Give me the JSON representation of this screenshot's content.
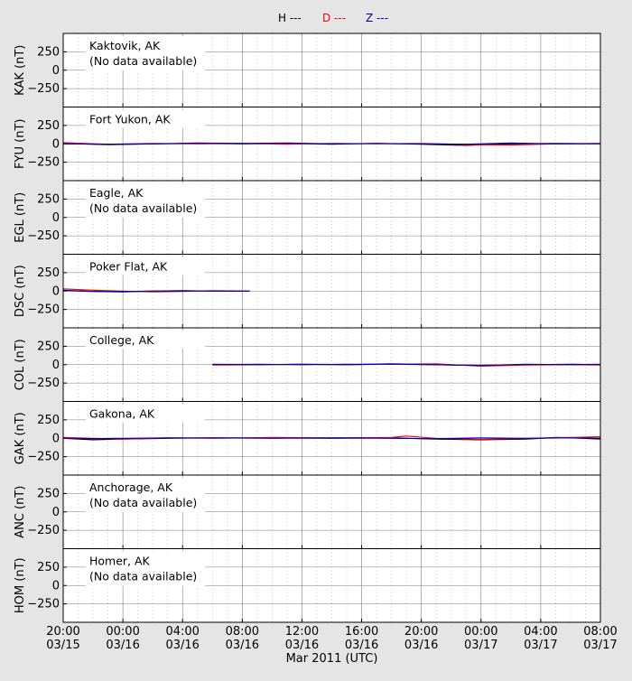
{
  "legend": [
    {
      "label": "H ---",
      "color": "#000000"
    },
    {
      "label": "D ---",
      "color": "#ff0000"
    },
    {
      "label": "Z ---",
      "color": "#0000bb"
    }
  ],
  "colors": {
    "background": "#e5e5e5",
    "plot_bg": "#ffffff",
    "H": "#000000",
    "D": "#ff0000",
    "Z": "#0000bb"
  },
  "chart_data": {
    "type": "line",
    "xlabel": "Mar 2011 (UTC)",
    "x_range_hours": [
      0,
      36
    ],
    "x_ticks": [
      {
        "hour": 0,
        "time": "20:00",
        "date": "03/15"
      },
      {
        "hour": 4,
        "time": "00:00",
        "date": "03/16"
      },
      {
        "hour": 8,
        "time": "04:00",
        "date": "03/16"
      },
      {
        "hour": 12,
        "time": "08:00",
        "date": "03/16"
      },
      {
        "hour": 16,
        "time": "12:00",
        "date": "03/16"
      },
      {
        "hour": 20,
        "time": "16:00",
        "date": "03/16"
      },
      {
        "hour": 24,
        "time": "20:00",
        "date": "03/16"
      },
      {
        "hour": 28,
        "time": "00:00",
        "date": "03/17"
      },
      {
        "hour": 32,
        "time": "04:00",
        "date": "03/17"
      },
      {
        "hour": 36,
        "time": "08:00",
        "date": "03/17"
      }
    ],
    "ylim": [
      -500,
      500
    ],
    "y_ticks": [
      250,
      0,
      -250
    ],
    "grid": true,
    "panels": [
      {
        "ylabel": "KAK (nT)",
        "station": "Kaktovik, AK",
        "note": "(No data available)",
        "series": []
      },
      {
        "ylabel": "FYU (nT)",
        "station": "Fort Yukon, AK",
        "note": "",
        "series": [
          {
            "name": "H",
            "points": [
              [
                0,
                5
              ],
              [
                3,
                -10
              ],
              [
                6,
                0
              ],
              [
                9,
                5
              ],
              [
                12,
                0
              ],
              [
                15,
                5
              ],
              [
                18,
                -5
              ],
              [
                21,
                5
              ],
              [
                24,
                -5
              ],
              [
                27,
                -20
              ],
              [
                30,
                0
              ],
              [
                33,
                5
              ],
              [
                36,
                0
              ]
            ]
          },
          {
            "name": "D",
            "points": [
              [
                0,
                15
              ],
              [
                3,
                -5
              ],
              [
                6,
                5
              ],
              [
                9,
                0
              ],
              [
                12,
                5
              ],
              [
                15,
                -5
              ],
              [
                18,
                5
              ],
              [
                21,
                0
              ],
              [
                24,
                5
              ],
              [
                27,
                -10
              ],
              [
                30,
                -15
              ],
              [
                33,
                0
              ],
              [
                36,
                0
              ]
            ]
          },
          {
            "name": "Z",
            "points": [
              [
                0,
                0
              ],
              [
                3,
                -5
              ],
              [
                6,
                0
              ],
              [
                9,
                10
              ],
              [
                12,
                5
              ],
              [
                15,
                10
              ],
              [
                18,
                0
              ],
              [
                21,
                5
              ],
              [
                24,
                0
              ],
              [
                27,
                -5
              ],
              [
                30,
                10
              ],
              [
                33,
                0
              ],
              [
                36,
                5
              ]
            ]
          }
        ]
      },
      {
        "ylabel": "EGL (nT)",
        "station": "Eagle, AK",
        "note": "(No data available)",
        "series": []
      },
      {
        "ylabel": "DSC (nT)",
        "station": "Poker Flat, AK",
        "note": "",
        "series": [
          {
            "name": "H",
            "points": [
              [
                0,
                10
              ],
              [
                2,
                -5
              ],
              [
                4,
                -10
              ],
              [
                6,
                0
              ],
              [
                8,
                5
              ],
              [
                10,
                0
              ],
              [
                12.5,
                0
              ]
            ]
          },
          {
            "name": "D",
            "points": [
              [
                0,
                30
              ],
              [
                2,
                10
              ],
              [
                4,
                0
              ],
              [
                6,
                -10
              ],
              [
                8,
                -5
              ],
              [
                10,
                5
              ],
              [
                12.5,
                0
              ]
            ]
          },
          {
            "name": "Z",
            "points": [
              [
                0,
                5
              ],
              [
                2,
                -5
              ],
              [
                4,
                -5
              ],
              [
                6,
                0
              ],
              [
                8,
                0
              ],
              [
                10,
                0
              ],
              [
                12.5,
                0
              ]
            ]
          }
        ]
      },
      {
        "ylabel": "COL (nT)",
        "station": "College, AK",
        "note": "",
        "series": [
          {
            "name": "H",
            "points": [
              [
                10,
                0
              ],
              [
                13,
                5
              ],
              [
                16,
                0
              ],
              [
                19,
                5
              ],
              [
                22,
                5
              ],
              [
                25,
                0
              ],
              [
                28,
                -10
              ],
              [
                31,
                0
              ],
              [
                34,
                5
              ],
              [
                36,
                0
              ]
            ]
          },
          {
            "name": "D",
            "points": [
              [
                10,
                -5
              ],
              [
                13,
                0
              ],
              [
                16,
                5
              ],
              [
                19,
                0
              ],
              [
                22,
                5
              ],
              [
                25,
                10
              ],
              [
                28,
                -20
              ],
              [
                31,
                -5
              ],
              [
                34,
                0
              ],
              [
                36,
                -5
              ]
            ]
          },
          {
            "name": "Z",
            "points": [
              [
                10,
                5
              ],
              [
                13,
                0
              ],
              [
                16,
                5
              ],
              [
                19,
                0
              ],
              [
                22,
                10
              ],
              [
                25,
                0
              ],
              [
                28,
                -10
              ],
              [
                31,
                5
              ],
              [
                34,
                0
              ],
              [
                36,
                5
              ]
            ]
          }
        ]
      },
      {
        "ylabel": "GAK (nT)",
        "station": "Gakona, AK",
        "note": "",
        "series": [
          {
            "name": "H",
            "points": [
              [
                0,
                0
              ],
              [
                2,
                -20
              ],
              [
                4,
                -10
              ],
              [
                7,
                0
              ],
              [
                10,
                5
              ],
              [
                14,
                5
              ],
              [
                18,
                0
              ],
              [
                22,
                5
              ],
              [
                25,
                -10
              ],
              [
                28,
                -20
              ],
              [
                31,
                -10
              ],
              [
                33,
                10
              ],
              [
                36,
                0
              ]
            ]
          },
          {
            "name": "D",
            "points": [
              [
                0,
                10
              ],
              [
                2,
                0
              ],
              [
                4,
                -10
              ],
              [
                7,
                5
              ],
              [
                10,
                0
              ],
              [
                14,
                10
              ],
              [
                18,
                5
              ],
              [
                22,
                10
              ],
              [
                23,
                30
              ],
              [
                25,
                0
              ],
              [
                28,
                -15
              ],
              [
                31,
                0
              ],
              [
                34,
                10
              ],
              [
                36,
                20
              ]
            ]
          },
          {
            "name": "Z",
            "points": [
              [
                0,
                0
              ],
              [
                2,
                -5
              ],
              [
                4,
                0
              ],
              [
                7,
                5
              ],
              [
                10,
                5
              ],
              [
                14,
                0
              ],
              [
                18,
                5
              ],
              [
                22,
                0
              ],
              [
                25,
                -5
              ],
              [
                28,
                5
              ],
              [
                31,
                0
              ],
              [
                34,
                5
              ],
              [
                36,
                -10
              ]
            ]
          }
        ]
      },
      {
        "ylabel": "ANC (nT)",
        "station": "Anchorage, AK",
        "note": "(No data available)",
        "series": []
      },
      {
        "ylabel": "HOM (nT)",
        "station": "Homer, AK",
        "note": "(No data available)",
        "series": []
      }
    ]
  }
}
